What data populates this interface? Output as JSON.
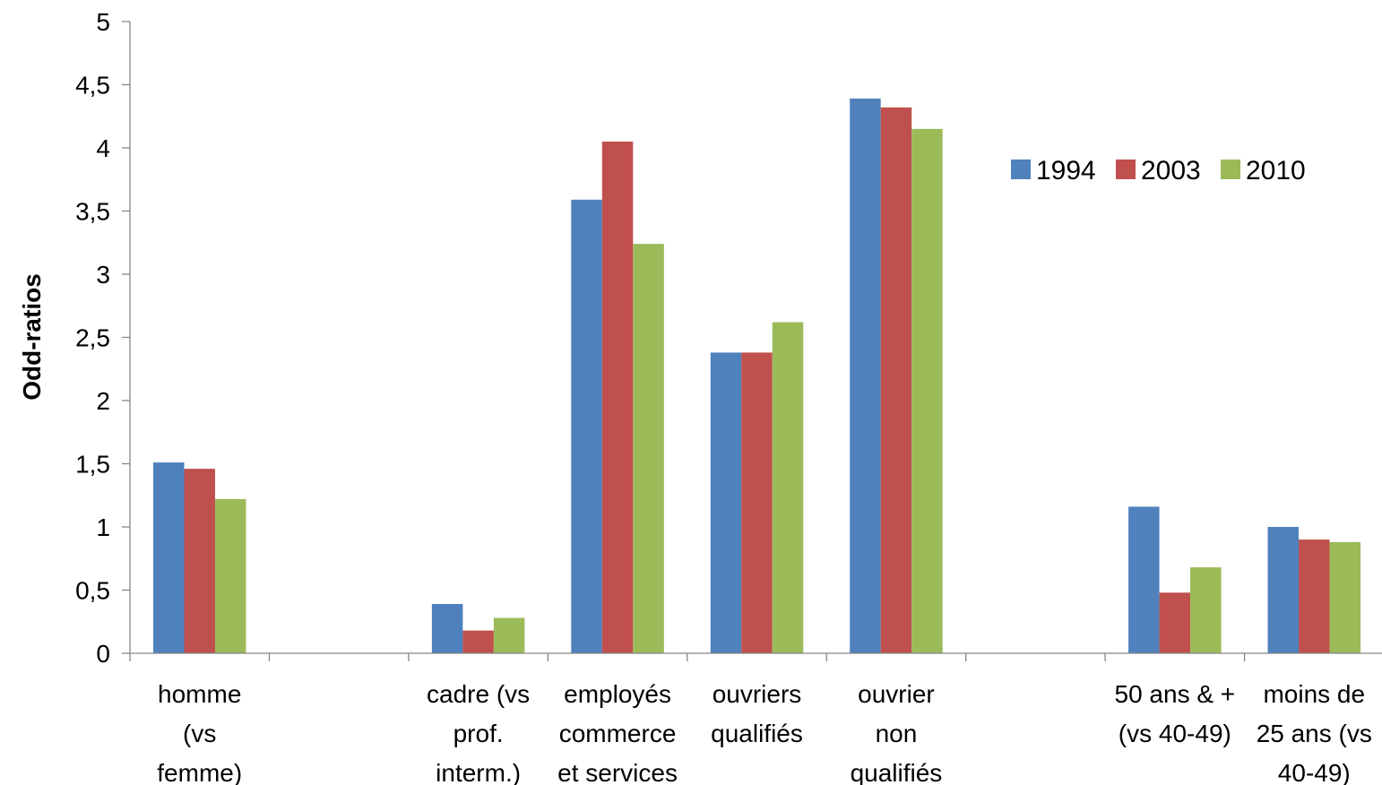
{
  "chart_data": {
    "type": "bar",
    "title": "",
    "xlabel": "",
    "ylabel": "Odd-ratios",
    "ylim": [
      0,
      5
    ],
    "yticks": [
      {
        "value": 0,
        "label": "0"
      },
      {
        "value": 0.5,
        "label": "0,5"
      },
      {
        "value": 1,
        "label": "1"
      },
      {
        "value": 1.5,
        "label": "1,5"
      },
      {
        "value": 2,
        "label": "2"
      },
      {
        "value": 2.5,
        "label": "2,5"
      },
      {
        "value": 3,
        "label": "3"
      },
      {
        "value": 3.5,
        "label": "3,5"
      },
      {
        "value": 4,
        "label": "4"
      },
      {
        "value": 4.5,
        "label": "4,5"
      },
      {
        "value": 5,
        "label": "5"
      }
    ],
    "grid": false,
    "legend_position": "right",
    "categories": [
      [
        "homme",
        "(vs",
        "femme)"
      ],
      [],
      [
        "cadre (vs",
        "prof.",
        "interm.)"
      ],
      [
        "employés",
        "commerce",
        "et services"
      ],
      [
        "ouvriers",
        "qualifiés"
      ],
      [
        "ouvrier",
        "non",
        "qualifiés"
      ],
      [],
      [
        "50 ans & +",
        "(vs 40-49)"
      ],
      [
        "moins de",
        "25 ans (vs",
        "40-49)"
      ]
    ],
    "series": [
      {
        "name": "1994",
        "color": "#4F81BD",
        "values": [
          1.51,
          null,
          0.39,
          3.59,
          2.38,
          4.39,
          null,
          1.16,
          1.0
        ]
      },
      {
        "name": "2003",
        "color": "#C0504D",
        "values": [
          1.46,
          null,
          0.18,
          4.05,
          2.38,
          4.32,
          null,
          0.48,
          0.9
        ]
      },
      {
        "name": "2010",
        "color": "#9BBB59",
        "values": [
          1.22,
          null,
          0.28,
          3.24,
          2.62,
          4.15,
          null,
          0.68,
          0.88
        ]
      }
    ]
  }
}
